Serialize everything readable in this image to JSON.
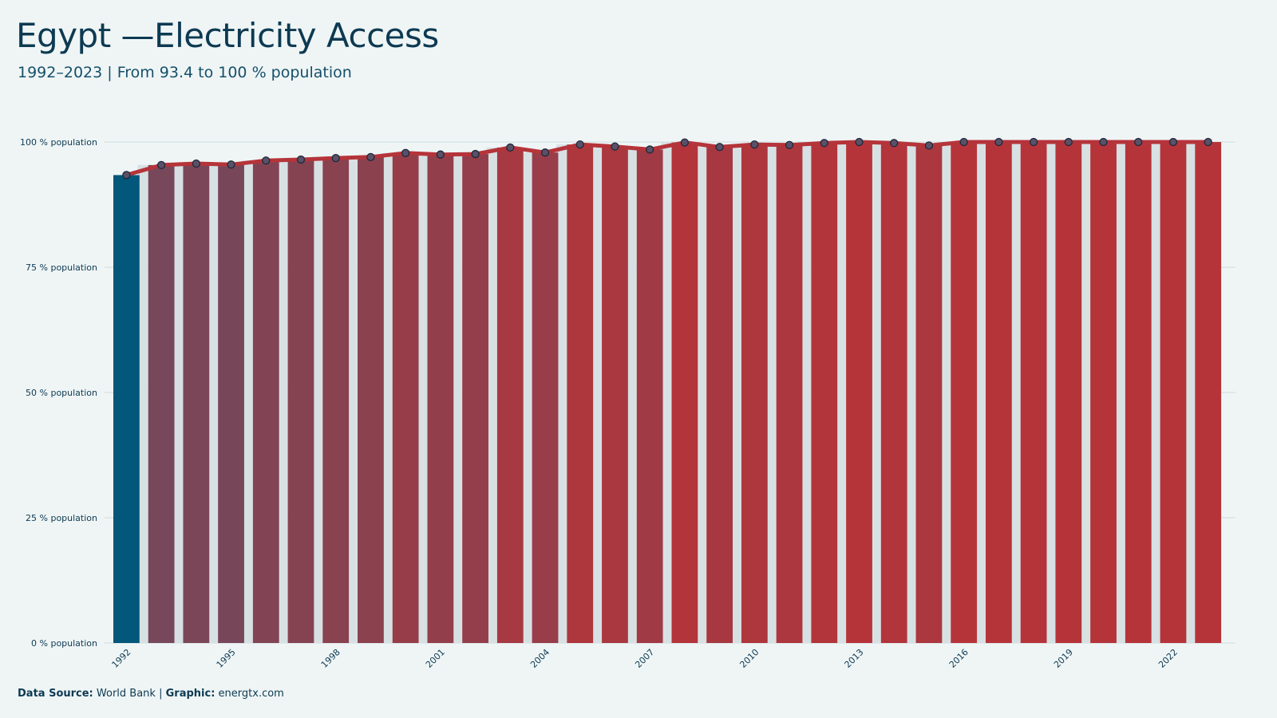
{
  "header": {
    "title": "Egypt —Electricity Access",
    "subtitle": "1992–2023 | From 93.4 to 100 % population"
  },
  "footer": {
    "source_label": "Data Source:",
    "source_value": "World Bank",
    "separator": "|",
    "graphic_label": "Graphic:",
    "graphic_value": "energtx.com"
  },
  "colors": {
    "background": "#eff5f5",
    "line": "#b5343a",
    "start_bar": "#02577a",
    "end_bar": "#b5343a",
    "shadow_bar": "#d7e1e4",
    "marker_fill": "#5a5068",
    "marker_stroke": "#1c2a3a"
  },
  "chart_data": {
    "type": "bar",
    "title": "Egypt —Electricity Access",
    "subtitle": "1992–2023 | From 93.4 to 100 % population",
    "ylabel": "",
    "xlabel": "",
    "y_unit": "% population",
    "ylim": [
      0,
      100
    ],
    "y_ticks": [
      0,
      25,
      50,
      75,
      100
    ],
    "y_tick_labels": [
      "0 % population",
      "25 % population",
      "50 % population",
      "75 % population",
      "100 % population"
    ],
    "x_tick_labels": [
      "1992",
      "1995",
      "1998",
      "2001",
      "2004",
      "2007",
      "2010",
      "2013",
      "2016",
      "2019",
      "2022"
    ],
    "grid": true,
    "categories": [
      "1992",
      "1993",
      "1994",
      "1995",
      "1996",
      "1997",
      "1998",
      "1999",
      "2000",
      "2001",
      "2002",
      "2003",
      "2004",
      "2005",
      "2006",
      "2007",
      "2008",
      "2009",
      "2010",
      "2011",
      "2012",
      "2013",
      "2014",
      "2015",
      "2016",
      "2017",
      "2018",
      "2019",
      "2020",
      "2021",
      "2022",
      "2023"
    ],
    "values": [
      93.4,
      95.4,
      95.7,
      95.5,
      96.3,
      96.5,
      96.8,
      97.0,
      97.8,
      97.5,
      97.6,
      98.9,
      97.9,
      99.5,
      99.1,
      98.5,
      99.9,
      99.0,
      99.5,
      99.4,
      99.8,
      100,
      99.8,
      99.3,
      100,
      100,
      100,
      100,
      100,
      100,
      100,
      100
    ]
  }
}
